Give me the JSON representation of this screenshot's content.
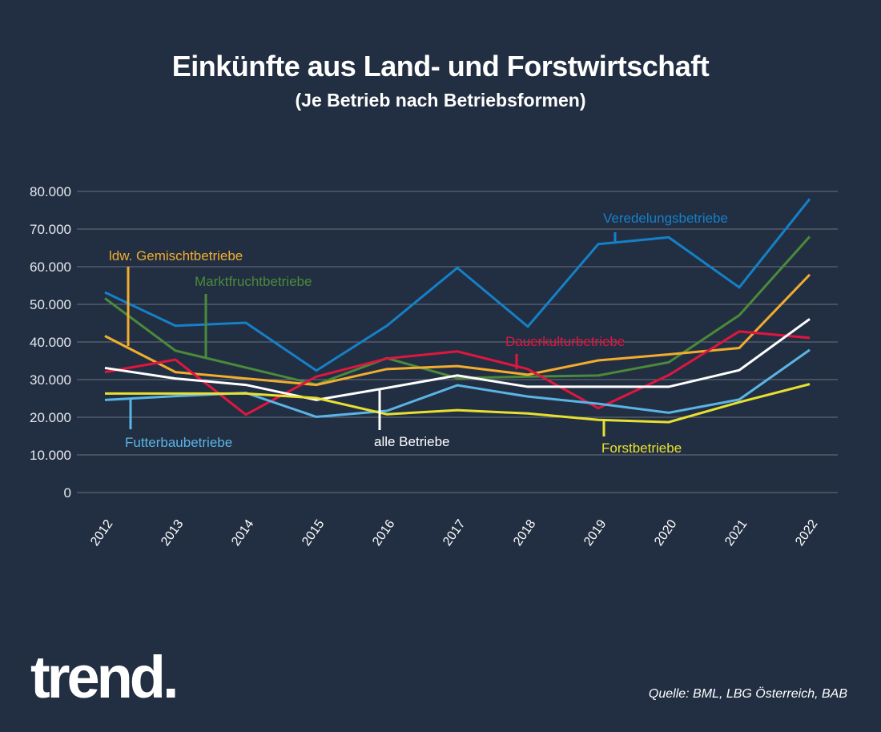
{
  "title": "Einkünfte aus Land- und Forstwirtschaft",
  "subtitle": "(Je Betrieb nach Betriebsformen)",
  "logo": "trend.",
  "source": "Quelle: BML, LBG Österreich, BAB",
  "colors": {
    "background": "#222f42",
    "grid": "#6b7280",
    "text": "#ffffff"
  },
  "chart_data": {
    "type": "line",
    "title": "Einkünfte aus Land- und Forstwirtschaft",
    "subtitle": "(Je Betrieb nach Betriebsformen)",
    "xlabel": "",
    "ylabel": "",
    "ylim": [
      0,
      80000
    ],
    "grid": true,
    "yticks": [
      0,
      10000,
      20000,
      30000,
      40000,
      50000,
      60000,
      70000,
      80000
    ],
    "ytick_labels": [
      "0",
      "10.000",
      "20.000",
      "30.000",
      "40.000",
      "50.000",
      "60.000",
      "70.000",
      "80.000"
    ],
    "categories": [
      "2012",
      "2013",
      "2014",
      "2015",
      "2016",
      "2017",
      "2018",
      "2019",
      "2020",
      "2021",
      "2022"
    ],
    "series": [
      {
        "name": "Veredelungsbetriebe",
        "color": "#1580c8",
        "values": [
          53200,
          44300,
          45100,
          32400,
          44300,
          59700,
          44100,
          66000,
          67800,
          54500,
          78000
        ],
        "label_at": 8,
        "label_pos": "above"
      },
      {
        "name": "Marktfruchtbetriebe",
        "color": "#4b8a3a",
        "values": [
          51600,
          37700,
          33200,
          28700,
          35700,
          30400,
          30800,
          31100,
          34600,
          47100,
          68000
        ],
        "label_at": 1.5,
        "label_pos": "above"
      },
      {
        "name": "ldw. Gemischtbetriebe",
        "color": "#f2ad2e",
        "values": [
          41600,
          32000,
          30300,
          28600,
          32800,
          33600,
          31300,
          35100,
          36700,
          38400,
          57900
        ],
        "label_at": 0.35,
        "label_pos": "above"
      },
      {
        "name": "Dauerkulturbetriebe",
        "color": "#e0163f",
        "values": [
          32000,
          35300,
          20700,
          30800,
          35600,
          37500,
          32800,
          22400,
          31200,
          42800,
          41100
        ],
        "label_at": 6,
        "label_pos": "above"
      },
      {
        "name": "alle Betriebe",
        "color": "#ffffff",
        "values": [
          33100,
          30300,
          28600,
          24600,
          27800,
          31100,
          28100,
          28100,
          28100,
          32500,
          46100
        ],
        "label_at": 4,
        "label_pos": "below"
      },
      {
        "name": "Futterbaubetriebe",
        "color": "#5ab4e5",
        "values": [
          24600,
          25600,
          26500,
          20100,
          21700,
          28500,
          25500,
          23600,
          21200,
          24700,
          37900
        ],
        "label_at": 0.35,
        "label_pos": "below"
      },
      {
        "name": "Forstbetriebe",
        "color": "#e8e030",
        "values": [
          26300,
          26300,
          26300,
          25100,
          20800,
          21900,
          21000,
          19300,
          18700,
          24000,
          28800
        ],
        "label_at": 7,
        "label_pos": "below"
      }
    ]
  },
  "labels": {
    "veredelung": "Veredelungsbetriebe",
    "marktfrucht": "Marktfruchtbetriebe",
    "gemischt": "ldw. Gemischtbetriebe",
    "dauerkultur": "Dauerkulturbetriebe",
    "alle": "alle Betriebe",
    "futterbau": "Futterbaubetriebe",
    "forst": "Forstbetriebe"
  }
}
